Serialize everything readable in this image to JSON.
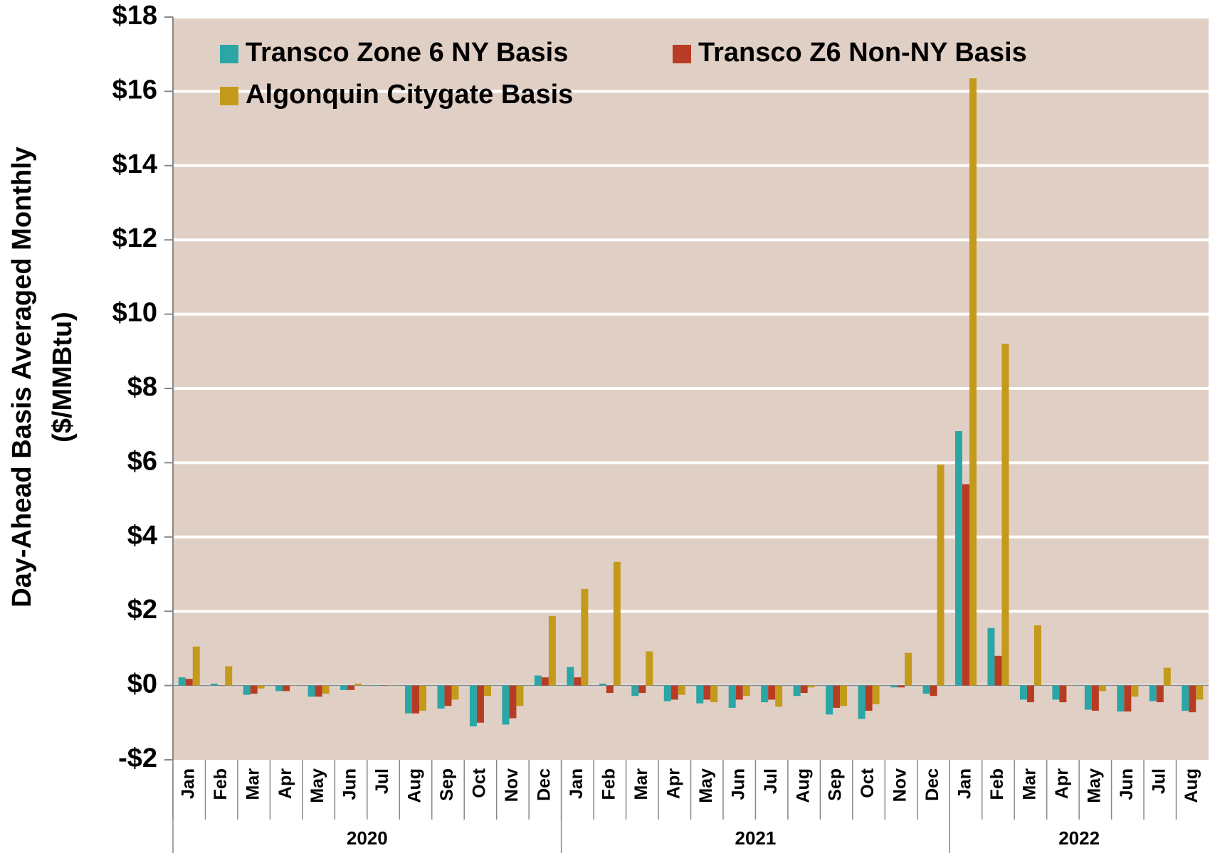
{
  "chart_data": {
    "type": "bar",
    "y_label": [
      "Day-Ahead Basis Averaged Monthly",
      "($/MMBtu)"
    ],
    "categories": [
      "Jan",
      "Feb",
      "Mar",
      "Apr",
      "May",
      "Jun",
      "Jul",
      "Aug",
      "Sep",
      "Oct",
      "Nov",
      "Dec",
      "Jan",
      "Feb",
      "Mar",
      "Apr",
      "May",
      "Jun",
      "Jul",
      "Aug",
      "Sep",
      "Oct",
      "Nov",
      "Dec",
      "Jan",
      "Feb",
      "Mar",
      "Apr",
      "May",
      "Jun",
      "Jul",
      "Aug"
    ],
    "groups": [
      {
        "label": "2020",
        "count": 12
      },
      {
        "label": "2021",
        "count": 12
      },
      {
        "label": "2022",
        "count": 8
      }
    ],
    "series": [
      {
        "name": "Transco Zone 6 NY Basis",
        "color": "#2aa6a6",
        "values": [
          0.22,
          0.05,
          -0.25,
          -0.15,
          -0.3,
          -0.12,
          0.0,
          -0.75,
          -0.62,
          -1.1,
          -1.05,
          0.27,
          0.5,
          0.05,
          -0.28,
          -0.42,
          -0.48,
          -0.6,
          -0.45,
          -0.28,
          -0.78,
          -0.9,
          -0.05,
          -0.22,
          6.85,
          1.55,
          -0.38,
          -0.38,
          -0.65,
          -0.7,
          -0.42,
          -0.68
        ]
      },
      {
        "name": "Transco Z6 Non-NY Basis",
        "color": "#b83c24",
        "values": [
          0.18,
          0.0,
          -0.22,
          -0.15,
          -0.3,
          -0.12,
          0.0,
          -0.75,
          -0.55,
          -1.0,
          -0.88,
          0.22,
          0.22,
          -0.2,
          -0.2,
          -0.38,
          -0.38,
          -0.38,
          -0.38,
          -0.2,
          -0.6,
          -0.68,
          -0.05,
          -0.28,
          5.42,
          0.8,
          -0.45,
          -0.45,
          -0.68,
          -0.7,
          -0.45,
          -0.72
        ]
      },
      {
        "name": "Algonquin Citygate Basis",
        "color": "#c49a1c",
        "values": [
          1.05,
          0.52,
          -0.08,
          0.0,
          -0.22,
          0.05,
          0.0,
          -0.68,
          -0.38,
          -0.28,
          -0.55,
          1.87,
          2.6,
          3.33,
          0.92,
          -0.25,
          -0.45,
          -0.28,
          -0.57,
          -0.05,
          -0.55,
          -0.5,
          0.88,
          5.95,
          16.35,
          9.2,
          1.62,
          0.0,
          -0.15,
          -0.3,
          0.48,
          -0.38
        ]
      }
    ],
    "ylim": [
      -2,
      18
    ],
    "yticks": [
      {
        "value": -2,
        "label": "-$2"
      },
      {
        "value": 0,
        "label": "$0"
      },
      {
        "value": 2,
        "label": "$2"
      },
      {
        "value": 4,
        "label": "$4"
      },
      {
        "value": 6,
        "label": "$6"
      },
      {
        "value": 8,
        "label": "$8"
      },
      {
        "value": 10,
        "label": "$10"
      },
      {
        "value": 12,
        "label": "$12"
      },
      {
        "value": 14,
        "label": "$14"
      },
      {
        "value": 16,
        "label": "$16"
      },
      {
        "value": 18,
        "label": "$18"
      }
    ],
    "grid": true,
    "grid_color": "#ffffff",
    "plot_background": "#e0cfc4",
    "legend": "upper-left"
  }
}
